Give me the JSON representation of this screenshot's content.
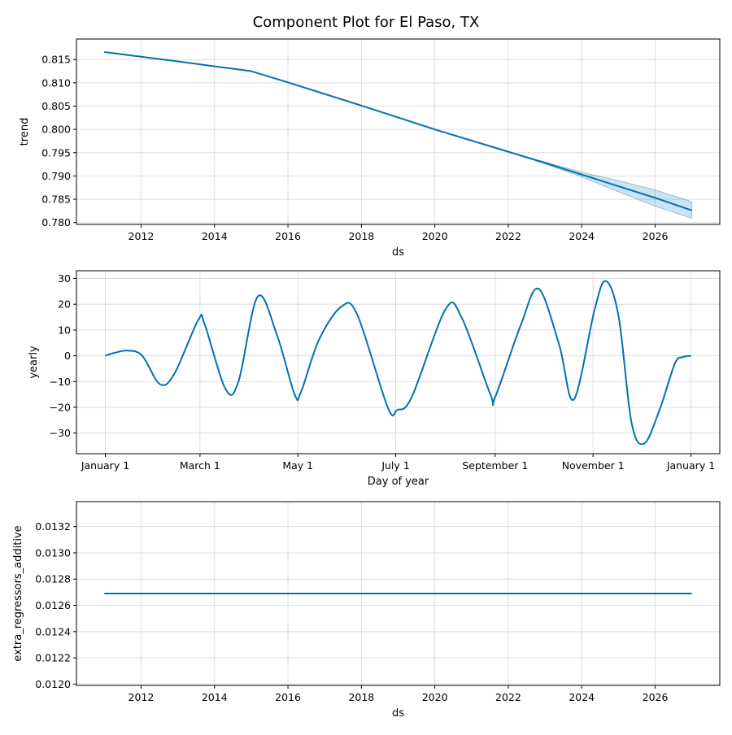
{
  "figure": {
    "title": "Component Plot for El Paso, TX",
    "colors": {
      "line": "#0072b2",
      "band": "#0072b2",
      "grid": "#dddddd",
      "axis": "#000000"
    }
  },
  "chart_data": [
    {
      "type": "line",
      "id": "trend",
      "title": "",
      "xlabel": "ds",
      "ylabel": "trend",
      "xlim": [
        2010.24,
        2027.76
      ],
      "ylim": [
        0.7796,
        0.8194
      ],
      "xticks": [
        2012,
        2014,
        2016,
        2018,
        2020,
        2022,
        2024,
        2026
      ],
      "xtick_labels": [
        "2012",
        "2014",
        "2016",
        "2018",
        "2020",
        "2022",
        "2024",
        "2026"
      ],
      "yticks": [
        0.78,
        0.785,
        0.79,
        0.795,
        0.8,
        0.805,
        0.81,
        0.815
      ],
      "ytick_labels": [
        "0.780",
        "0.785",
        "0.790",
        "0.795",
        "0.800",
        "0.805",
        "0.810",
        "0.815"
      ],
      "grid": true,
      "series": [
        {
          "x": [
            2011.0,
            2013.0,
            2015.0,
            2016.0,
            2018.0,
            2020.0,
            2022.0,
            2023.0,
            2024.0,
            2025.0,
            2026.0,
            2027.0
          ],
          "y": [
            0.8166,
            0.8146,
            0.8125,
            0.8101,
            0.8051,
            0.8,
            0.7952,
            0.7928,
            0.7903,
            0.7878,
            0.7853,
            0.7826
          ],
          "lower": [
            0.8166,
            0.8146,
            0.8125,
            0.8101,
            0.8051,
            0.8,
            0.7952,
            0.7926,
            0.7898,
            0.7866,
            0.7835,
            0.7809
          ],
          "upper": [
            0.8166,
            0.8146,
            0.8125,
            0.8101,
            0.8051,
            0.8,
            0.7952,
            0.793,
            0.7908,
            0.789,
            0.787,
            0.7845
          ]
        }
      ]
    },
    {
      "type": "line",
      "id": "yearly",
      "title": "",
      "xlabel": "Day of year",
      "ylabel": "yearly",
      "xlim": [
        -18,
        383
      ],
      "ylim": [
        -38,
        33
      ],
      "xticks": [
        0,
        59,
        120,
        181,
        243,
        304,
        365
      ],
      "xtick_labels": [
        "January 1",
        "March 1",
        "May 1",
        "July 1",
        "September 1",
        "November 1",
        "January 1"
      ],
      "yticks": [
        -30,
        -20,
        -10,
        0,
        10,
        20,
        30
      ],
      "ytick_labels": [
        "−30",
        "−20",
        "−10",
        "0",
        "10",
        "20",
        "30"
      ],
      "grid": true,
      "series": [
        {
          "x": [
            0,
            5,
            14,
            23,
            34,
            43,
            58,
            62,
            75,
            83,
            95,
            107,
            118,
            122,
            133,
            147,
            157,
            176,
            182,
            191,
            212,
            222,
            240,
            243,
            259,
            270,
            283,
            292,
            305,
            312,
            320,
            328,
            336,
            346,
            355,
            360,
            365
          ],
          "y": [
            0,
            1,
            2,
            0,
            -11,
            -7,
            14,
            12,
            -13,
            -10,
            23,
            8,
            -15,
            -14,
            6,
            19,
            16,
            -20,
            -21,
            -16,
            18,
            15,
            -15,
            -16,
            12,
            26,
            4,
            -17,
            18,
            29,
            15,
            -26,
            -34,
            -20,
            -3,
            -0.5,
            0
          ]
        }
      ]
    },
    {
      "type": "line",
      "id": "extra_regressors_additive",
      "title": "",
      "xlabel": "ds",
      "ylabel": "extra_regressors_additive",
      "xlim": [
        2010.24,
        2027.76
      ],
      "ylim": [
        0.01199,
        0.01339
      ],
      "xticks": [
        2012,
        2014,
        2016,
        2018,
        2020,
        2022,
        2024,
        2026
      ],
      "xtick_labels": [
        "2012",
        "2014",
        "2016",
        "2018",
        "2020",
        "2022",
        "2024",
        "2026"
      ],
      "yticks": [
        0.012,
        0.0122,
        0.0124,
        0.0126,
        0.0128,
        0.013,
        0.0132
      ],
      "ytick_labels": [
        "0.0120",
        "0.0122",
        "0.0124",
        "0.0126",
        "0.0128",
        "0.0130",
        "0.0132"
      ],
      "grid": true,
      "series": [
        {
          "x": [
            2011.0,
            2027.0
          ],
          "y": [
            0.01269,
            0.01269
          ]
        }
      ]
    }
  ]
}
